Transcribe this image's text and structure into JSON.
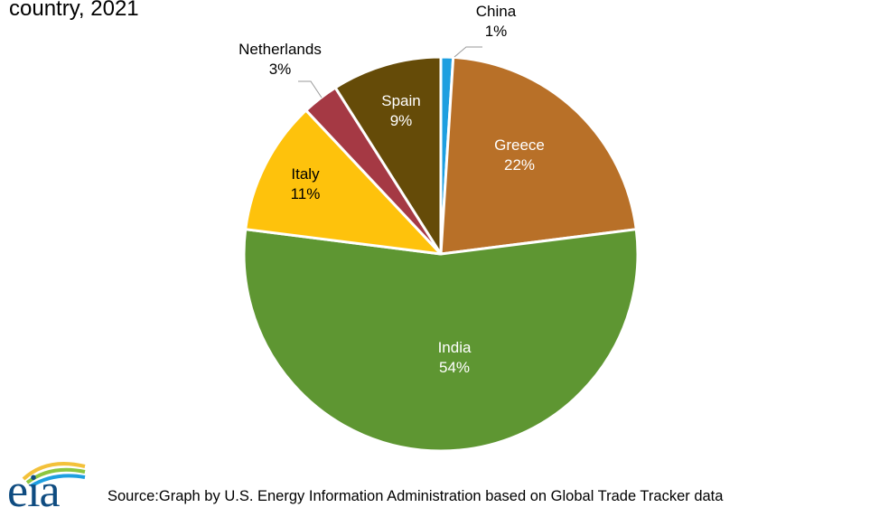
{
  "title_fragment": "country, 2021",
  "source": "Source:Graph by U.S. Energy Information Administration based on Global Trade Tracker data",
  "logo_text": "eia",
  "colors": {
    "china": "#1e9fe0",
    "greece": "#b87028",
    "india": "#5e9632",
    "italy": "#fec20c",
    "netherlands": "#a53944",
    "spain": "#654b08",
    "leader": "#999999"
  },
  "chart_data": {
    "type": "pie",
    "title": "country, 2021",
    "unit": "%",
    "slices": [
      {
        "label": "China",
        "value": 1,
        "display": "1%",
        "color": "#1e9fe0"
      },
      {
        "label": "Greece",
        "value": 22,
        "display": "22%",
        "color": "#b87028"
      },
      {
        "label": "India",
        "value": 54,
        "display": "54%",
        "color": "#5e9632"
      },
      {
        "label": "Italy",
        "value": 11,
        "display": "11%",
        "color": "#fec20c"
      },
      {
        "label": "Netherlands",
        "value": 3,
        "display": "3%",
        "color": "#a53944"
      },
      {
        "label": "Spain",
        "value": 9,
        "display": "9%",
        "color": "#654b08"
      }
    ],
    "start_angle_deg": 0,
    "direction": "clockwise"
  }
}
